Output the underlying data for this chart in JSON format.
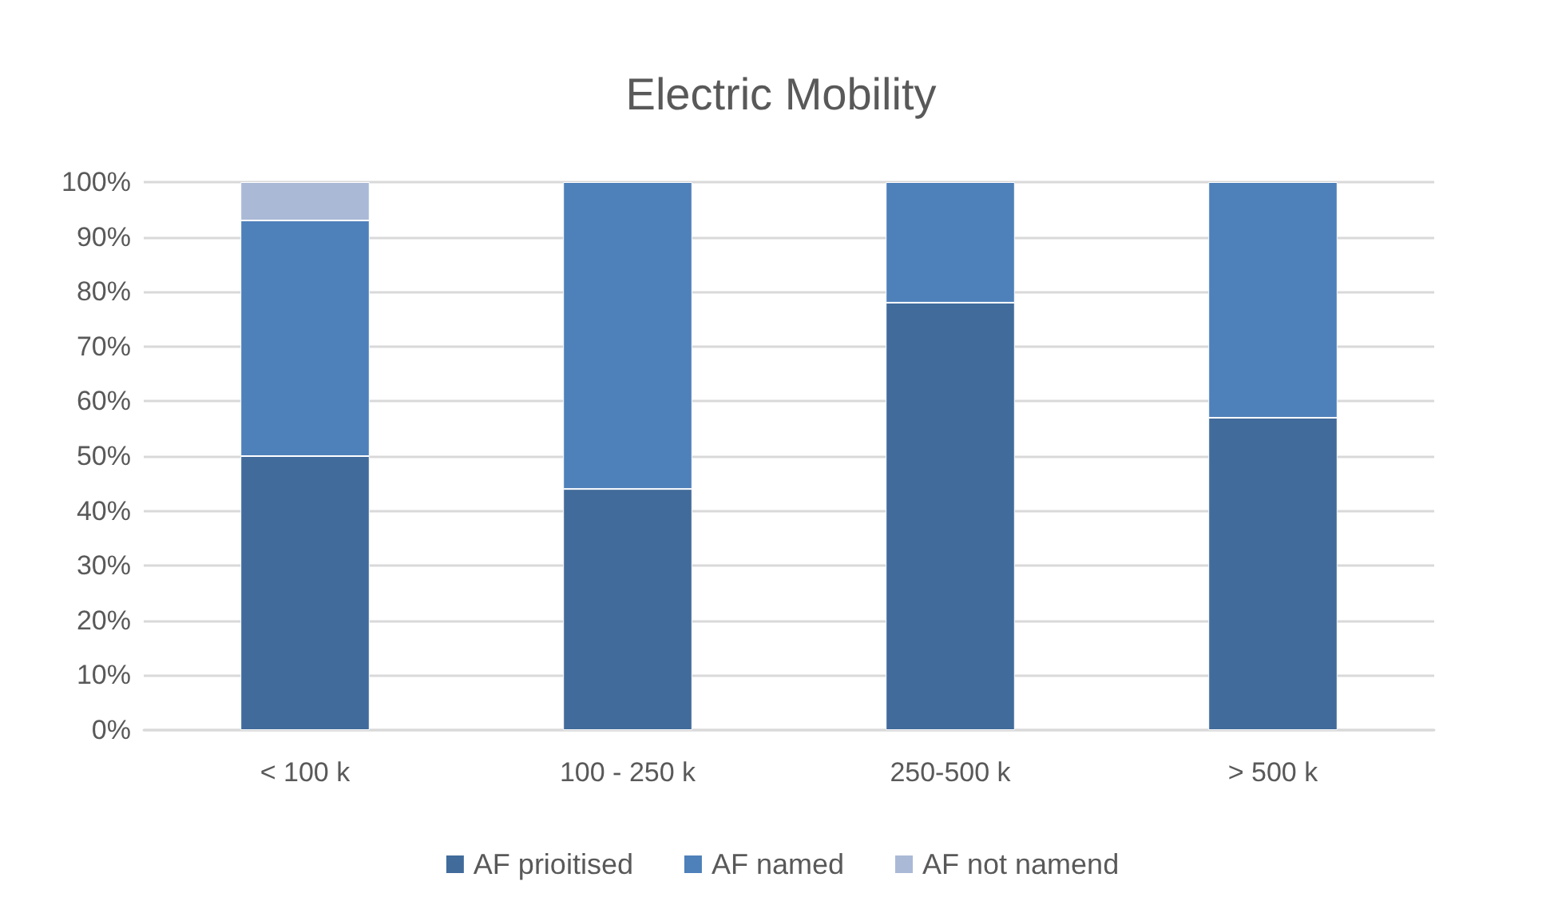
{
  "chart_data": {
    "type": "bar",
    "title": "Electric Mobility",
    "stacked": true,
    "categories": [
      "< 100 k",
      "100 - 250 k",
      "250-500 k",
      "> 500 k"
    ],
    "series": [
      {
        "name": "AF prioitised",
        "color": "#416b9b",
        "values": [
          50,
          44,
          78,
          57
        ]
      },
      {
        "name": "AF named",
        "color": "#4e80ba",
        "values": [
          43,
          56,
          22,
          43
        ]
      },
      {
        "name": "AF not namend",
        "color": "#aab9d6",
        "values": [
          7,
          null,
          null,
          null
        ]
      }
    ],
    "ylim": [
      0,
      100
    ],
    "yticks": [
      {
        "value": 0,
        "label": "0%"
      },
      {
        "value": 10,
        "label": "10%"
      },
      {
        "value": 20,
        "label": "20%"
      },
      {
        "value": 30,
        "label": "30%"
      },
      {
        "value": 40,
        "label": "40%"
      },
      {
        "value": 50,
        "label": "50%"
      },
      {
        "value": 60,
        "label": "60%"
      },
      {
        "value": 70,
        "label": "70%"
      },
      {
        "value": 80,
        "label": "80%"
      },
      {
        "value": 90,
        "label": "90%"
      },
      {
        "value": 100,
        "label": "100%"
      }
    ],
    "grid": "y",
    "legend": "bottom"
  }
}
